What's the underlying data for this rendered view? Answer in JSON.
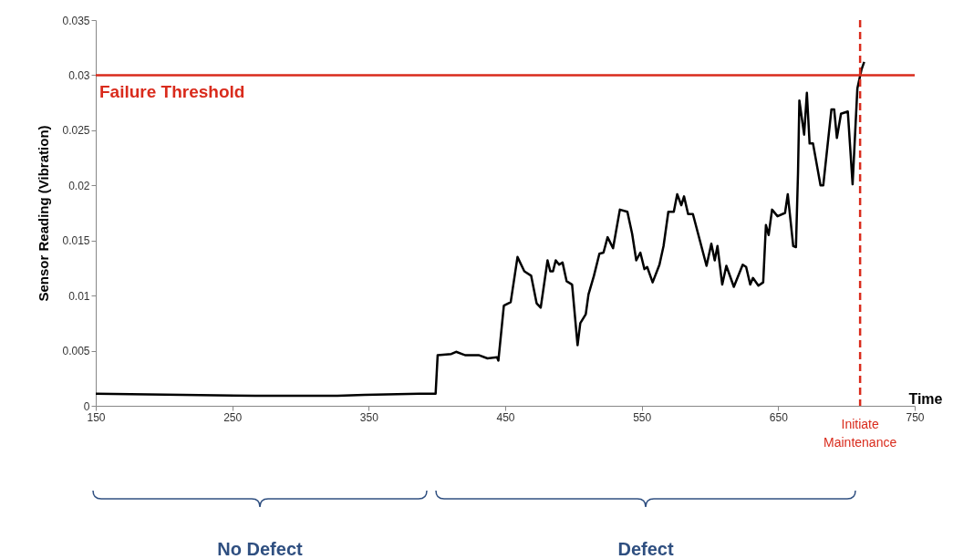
{
  "chart_data": {
    "type": "line",
    "xlabel": "Time",
    "ylabel": "Sensor Reading (Vibration)",
    "xlim": [
      150,
      750
    ],
    "xticks": [
      150,
      250,
      350,
      450,
      550,
      650,
      750
    ],
    "ylim": [
      0,
      0.035
    ],
    "yticks": [
      0,
      0.005,
      0.01,
      0.015,
      0.02,
      0.025,
      0.03,
      0.035
    ],
    "grid": false,
    "legend": false,
    "marker": "none",
    "line_style": "solid",
    "series": [
      {
        "color": "#000000",
        "x": [
          150,
          213.5,
          267,
          327,
          347,
          387,
          399,
          400.5,
          410.5,
          414,
          420.5,
          430.5,
          437,
          444,
          445,
          449,
          454,
          459,
          464,
          469,
          473,
          476,
          481,
          483,
          485,
          487,
          489.5,
          492,
          495,
          499,
          503,
          505,
          509,
          511,
          515,
          519,
          522,
          525,
          529,
          534,
          539.5,
          543,
          546,
          549,
          552,
          554,
          558,
          563,
          566,
          569.5,
          573.5,
          576,
          579,
          581,
          584,
          587.5,
          597.5,
          601,
          603.5,
          605.5,
          609,
          612,
          617.5,
          624,
          626.5,
          629.5,
          631.5,
          635.5,
          639,
          641,
          643,
          645.5,
          649.5,
          655,
          657,
          661,
          663,
          664.5,
          665.5,
          669,
          671,
          673,
          675.5,
          681,
          683,
          689,
          691,
          693,
          696,
          701,
          704.5,
          708,
          711,
          713
        ],
        "values": [
          0.0011,
          0.001,
          0.0009,
          0.0009,
          0.001,
          0.0011,
          0.0011,
          0.0046,
          0.0047,
          0.0049,
          0.0046,
          0.0046,
          0.0043,
          0.0044,
          0.0041,
          0.0091,
          0.0094,
          0.0135,
          0.0122,
          0.0118,
          0.0093,
          0.0089,
          0.0132,
          0.0122,
          0.0122,
          0.0132,
          0.0128,
          0.013,
          0.0113,
          0.011,
          0.0055,
          0.0075,
          0.0083,
          0.0101,
          0.0118,
          0.0138,
          0.0139,
          0.0153,
          0.0143,
          0.0178,
          0.0176,
          0.0156,
          0.0132,
          0.0139,
          0.0124,
          0.0126,
          0.0112,
          0.0128,
          0.0145,
          0.0176,
          0.0176,
          0.0192,
          0.0182,
          0.019,
          0.0174,
          0.0174,
          0.0127,
          0.0147,
          0.0132,
          0.0145,
          0.011,
          0.0127,
          0.0108,
          0.0128,
          0.0126,
          0.011,
          0.0116,
          0.0109,
          0.0112,
          0.0164,
          0.0155,
          0.0178,
          0.0172,
          0.0175,
          0.0192,
          0.0145,
          0.0144,
          0.0211,
          0.0277,
          0.0246,
          0.0284,
          0.0238,
          0.0238,
          0.02,
          0.02,
          0.0269,
          0.0269,
          0.0243,
          0.0265,
          0.0267,
          0.0201,
          0.0288,
          0.0305,
          0.0312
        ]
      }
    ],
    "ref_lines": [
      {
        "axis": "y",
        "value": 0.03,
        "label": "Failure Threshold",
        "color": "#d92b1c",
        "line_style": "solid"
      },
      {
        "axis": "x",
        "value": 710,
        "label": "Initiate Maintenance",
        "color": "#d92b1c",
        "line_style": "dashed"
      }
    ],
    "annotations": [
      "No Defect",
      "Defect"
    ]
  }
}
